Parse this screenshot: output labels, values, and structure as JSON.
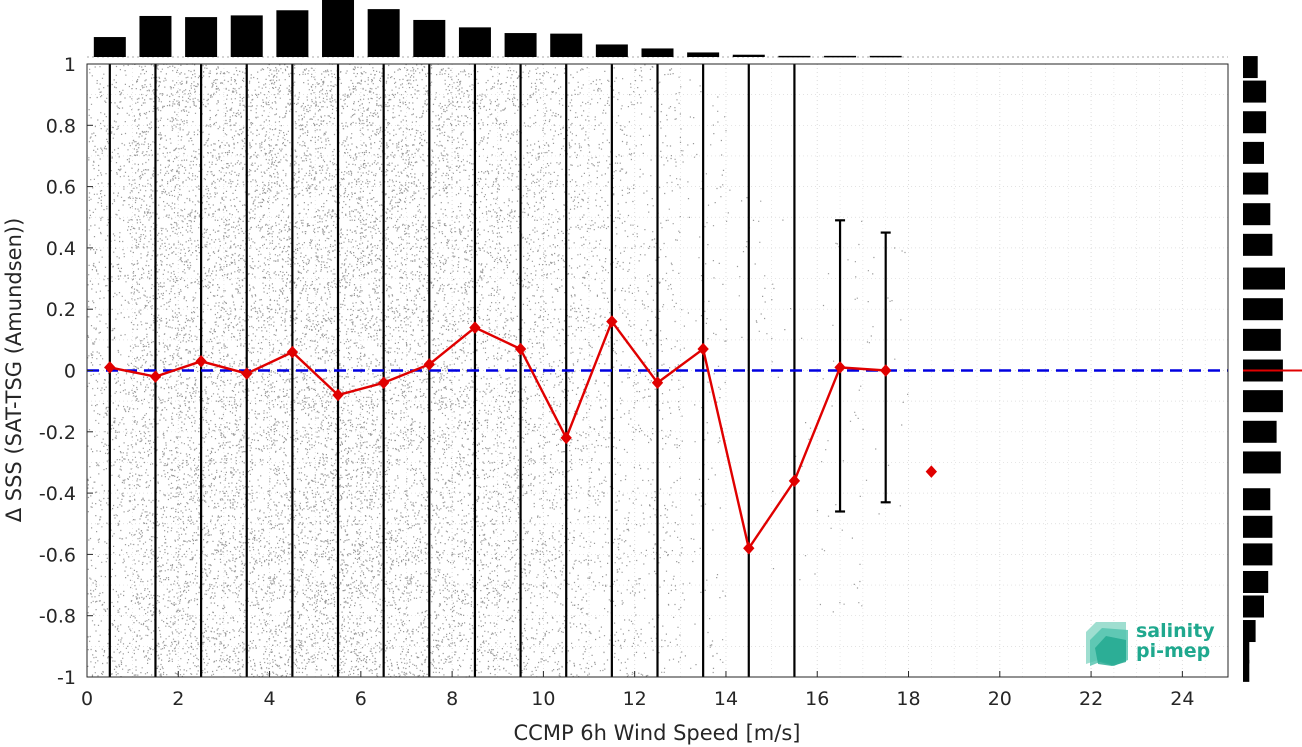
{
  "chart_data": {
    "type": "scatter",
    "title": "",
    "xlabel": "CCMP 6h Wind Speed [m/s]",
    "ylabel": "Δ SSS (SAT-TSG (Amundsen))",
    "xlim": [
      0,
      25
    ],
    "ylim": [
      -1,
      1
    ],
    "xticks": [
      "0",
      "2",
      "4",
      "6",
      "8",
      "10",
      "12",
      "14",
      "16",
      "18",
      "20",
      "22",
      "24"
    ],
    "yticks": [
      "-1",
      "-0.8",
      "-0.6",
      "-0.4",
      "-0.2",
      "0",
      "0.2",
      "0.4",
      "0.6",
      "0.8",
      "1"
    ],
    "grid": true,
    "series": [
      {
        "x": [
          0.5,
          1.5,
          2.5,
          3.5,
          4.5,
          5.5,
          6.5,
          7.5,
          8.5,
          9.5,
          10.5,
          11.5,
          12.5,
          13.5,
          14.5,
          15.5,
          16.5,
          17.5,
          18.5
        ],
        "y": [
          0.01,
          -0.02,
          0.03,
          -0.01,
          0.06,
          -0.08,
          -0.04,
          0.02,
          0.14,
          0.07,
          -0.22,
          0.16,
          -0.04,
          0.07,
          -0.58,
          -0.36,
          0.01,
          0.0,
          -0.33
        ],
        "color": "#e00000"
      }
    ],
    "error_bars": [
      {
        "x": 16.5,
        "low": -0.46,
        "high": 0.49
      },
      {
        "x": 17.5,
        "low": -0.43,
        "high": 0.45
      }
    ],
    "tall_bars_x": [
      0.5,
      1.5,
      2.5,
      3.5,
      4.5,
      5.5,
      6.5,
      7.5,
      8.5,
      9.5,
      10.5,
      11.5,
      12.5,
      13.5,
      14.5,
      15.5
    ],
    "zero_line": {
      "y": 0,
      "color": "#0000e0",
      "style": "dashed"
    },
    "top_histogram": {
      "x": [
        0.5,
        1.5,
        2.5,
        3.5,
        4.5,
        5.5,
        6.5,
        7.5,
        8.5,
        9.5,
        10.5,
        11.5,
        12.5,
        13.5,
        14.5,
        15.5,
        16.5,
        17.5
      ],
      "counts": [
        0.35,
        0.72,
        0.7,
        0.73,
        0.82,
        1.0,
        0.84,
        0.65,
        0.52,
        0.42,
        0.41,
        0.22,
        0.15,
        0.08,
        0.04,
        0.02,
        0.02,
        0.02
      ]
    },
    "right_histogram": {
      "y": [
        -0.98,
        -0.92,
        -0.85,
        -0.77,
        -0.69,
        -0.6,
        -0.51,
        -0.42,
        -0.3,
        -0.2,
        -0.1,
        0.0,
        0.1,
        0.2,
        0.3,
        0.41,
        0.51,
        0.61,
        0.71,
        0.81,
        0.91,
        0.99
      ],
      "counts": [
        0.15,
        0.15,
        0.3,
        0.5,
        0.6,
        0.7,
        0.7,
        0.65,
        0.9,
        0.8,
        0.95,
        0.95,
        0.9,
        0.95,
        1.0,
        0.7,
        0.65,
        0.6,
        0.5,
        0.55,
        0.55,
        0.35
      ]
    },
    "colors": {
      "scatter": "#9a9a9a",
      "bars": "#000000",
      "mean": "#e00000",
      "zero": "#0000e0",
      "grid": "#d8d8d8",
      "logo": "#1fa88e"
    }
  },
  "logo": {
    "line1": "salinity",
    "line2": "pi-mep"
  }
}
